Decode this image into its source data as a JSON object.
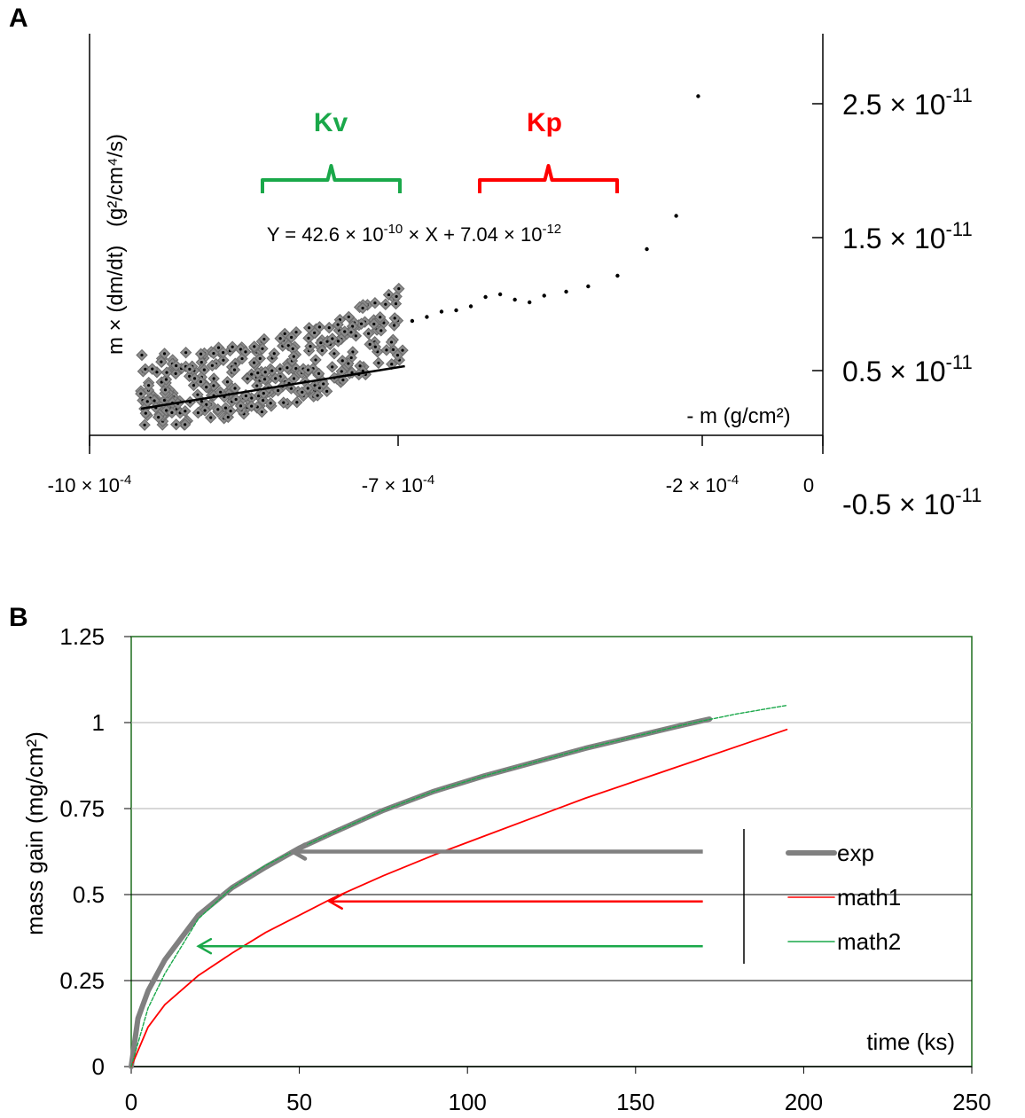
{
  "panelA": {
    "letter": "A",
    "ylabel_main": "m × (dm/dt)",
    "ylabel_unit": "(g²/cm⁴/s)",
    "xlabel": "- m (g/cm²)",
    "equation": {
      "lhs": "Y = 42.6 × 10",
      "exp1": "-10",
      "mid": " × X + 7.04 × 10",
      "exp2": "-12"
    },
    "kv_label": "Kv",
    "kp_label": "Kp",
    "xticks": [
      {
        "value": -0.001,
        "base": "-10 × 10",
        "exp": "-4"
      },
      {
        "value": -0.0007,
        "base": "-7 × 10",
        "exp": "-4"
      },
      {
        "value": -0.0002,
        "base": "-2 × 10",
        "exp": "-4"
      },
      {
        "value": 0,
        "base": "0",
        "exp": ""
      }
    ],
    "yticks": [
      {
        "value": 2.5e-11,
        "base": "2.5 × 10",
        "exp": "-11"
      },
      {
        "value": 1.5e-11,
        "base": "1.5 × 10",
        "exp": "-11"
      },
      {
        "value": 5e-12,
        "base": "0.5 × 10",
        "exp": "-11"
      },
      {
        "value": -5e-12,
        "base": "-0.5 × 10",
        "exp": "-11"
      }
    ],
    "colors": {
      "kv": "#1aa84a",
      "kp": "#ff0000",
      "points": "#808080",
      "fit": "#000000"
    }
  },
  "panelB": {
    "letter": "B",
    "ylabel": "mass gain (mg/cm²)",
    "xlabel": "time (ks)",
    "legend": [
      {
        "name": "exp",
        "color": "#808080"
      },
      {
        "name": "math1",
        "color": "#ff0000"
      },
      {
        "name": "math2",
        "color": "#1aa84a"
      }
    ],
    "colors": {
      "axis_frame": "#1e6e1e"
    }
  },
  "chart_data": [
    {
      "type": "scatter",
      "title": "",
      "xlabel": "- m (g/cm²)",
      "ylabel": "m × (dm/dt) (g²/cm⁴/s)",
      "xlim": [
        -0.001,
        0.0
      ],
      "ylim": [
        -5e-12,
        2.8e-11
      ],
      "x_scale_note": "x tick labels -10×10⁻⁴, -7×10⁻⁴, -2×10⁻⁴, 0",
      "fit_line": {
        "slope": 4.26e-09,
        "intercept": 7.04e-12,
        "x_range": [
          -0.00093,
          -0.00057
        ]
      },
      "tail_points": [
        {
          "x": -0.00056,
          "y": 8.6e-12
        },
        {
          "x": -0.00054,
          "y": 8.9e-12
        },
        {
          "x": -0.00052,
          "y": 9.3e-12
        },
        {
          "x": -0.0005,
          "y": 9.4e-12
        },
        {
          "x": -0.00048,
          "y": 9.7e-12
        },
        {
          "x": -0.00046,
          "y": 1.04e-11
        },
        {
          "x": -0.00044,
          "y": 1.06e-11
        },
        {
          "x": -0.00042,
          "y": 1.02e-11
        },
        {
          "x": -0.0004,
          "y": 1e-11
        },
        {
          "x": -0.00038,
          "y": 1.05e-11
        },
        {
          "x": -0.00035,
          "y": 1.08e-11
        },
        {
          "x": -0.00032,
          "y": 1.12e-11
        },
        {
          "x": -0.00028,
          "y": 1.2e-11
        },
        {
          "x": -0.00024,
          "y": 1.4e-11
        },
        {
          "x": -0.0002,
          "y": 1.65e-11
        },
        {
          "x": -0.00017,
          "y": 2.55e-11
        }
      ],
      "scatter_cloud": {
        "x_range": [
          -0.00093,
          -0.00057
        ],
        "trend": "rising from ~3.5e-12 to ~8.5e-12 with scatter of ~±3e-12"
      }
    },
    {
      "type": "line",
      "title": "",
      "xlabel": "time (ks)",
      "ylabel": "mass gain (mg/cm²)",
      "xlim": [
        0,
        250
      ],
      "ylim": [
        0,
        1.25
      ],
      "xticks": [
        0,
        50,
        100,
        150,
        200,
        250
      ],
      "yticks": [
        0,
        0.25,
        0.5,
        0.75,
        1,
        1.25
      ],
      "grid": true,
      "legend_position": "right",
      "series": [
        {
          "name": "exp",
          "color": "#808080",
          "x": [
            0,
            2,
            5,
            10,
            20,
            30,
            40,
            50,
            60,
            75,
            90,
            105,
            120,
            135,
            150,
            165,
            172
          ],
          "y": [
            0,
            0.14,
            0.22,
            0.31,
            0.44,
            0.52,
            0.58,
            0.635,
            0.68,
            0.745,
            0.8,
            0.845,
            0.885,
            0.925,
            0.96,
            0.995,
            1.01
          ]
        },
        {
          "name": "math1",
          "color": "#ff0000",
          "x": [
            0,
            5,
            10,
            20,
            30,
            40,
            50,
            60,
            75,
            90,
            105,
            120,
            135,
            150,
            165,
            180,
            195
          ],
          "y": [
            0,
            0.115,
            0.18,
            0.265,
            0.33,
            0.39,
            0.44,
            0.49,
            0.555,
            0.615,
            0.67,
            0.725,
            0.78,
            0.83,
            0.88,
            0.93,
            0.98
          ]
        },
        {
          "name": "math2",
          "color": "#1aa84a",
          "x": [
            0,
            5,
            10,
            20,
            30,
            40,
            50,
            60,
            75,
            90,
            105,
            120,
            135,
            150,
            165,
            180,
            195
          ],
          "y": [
            0,
            0.17,
            0.27,
            0.43,
            0.52,
            0.585,
            0.635,
            0.68,
            0.745,
            0.8,
            0.845,
            0.885,
            0.925,
            0.96,
            0.995,
            1.025,
            1.05
          ]
        }
      ],
      "annotation_arrows": [
        {
          "color": "#808080",
          "from": [
            170,
            0.625
          ],
          "to": [
            48,
            0.625
          ]
        },
        {
          "color": "#ff0000",
          "from": [
            170,
            0.48
          ],
          "to": [
            59,
            0.48
          ]
        },
        {
          "color": "#1aa84a",
          "from": [
            170,
            0.35
          ],
          "to": [
            20,
            0.35
          ]
        }
      ]
    }
  ]
}
